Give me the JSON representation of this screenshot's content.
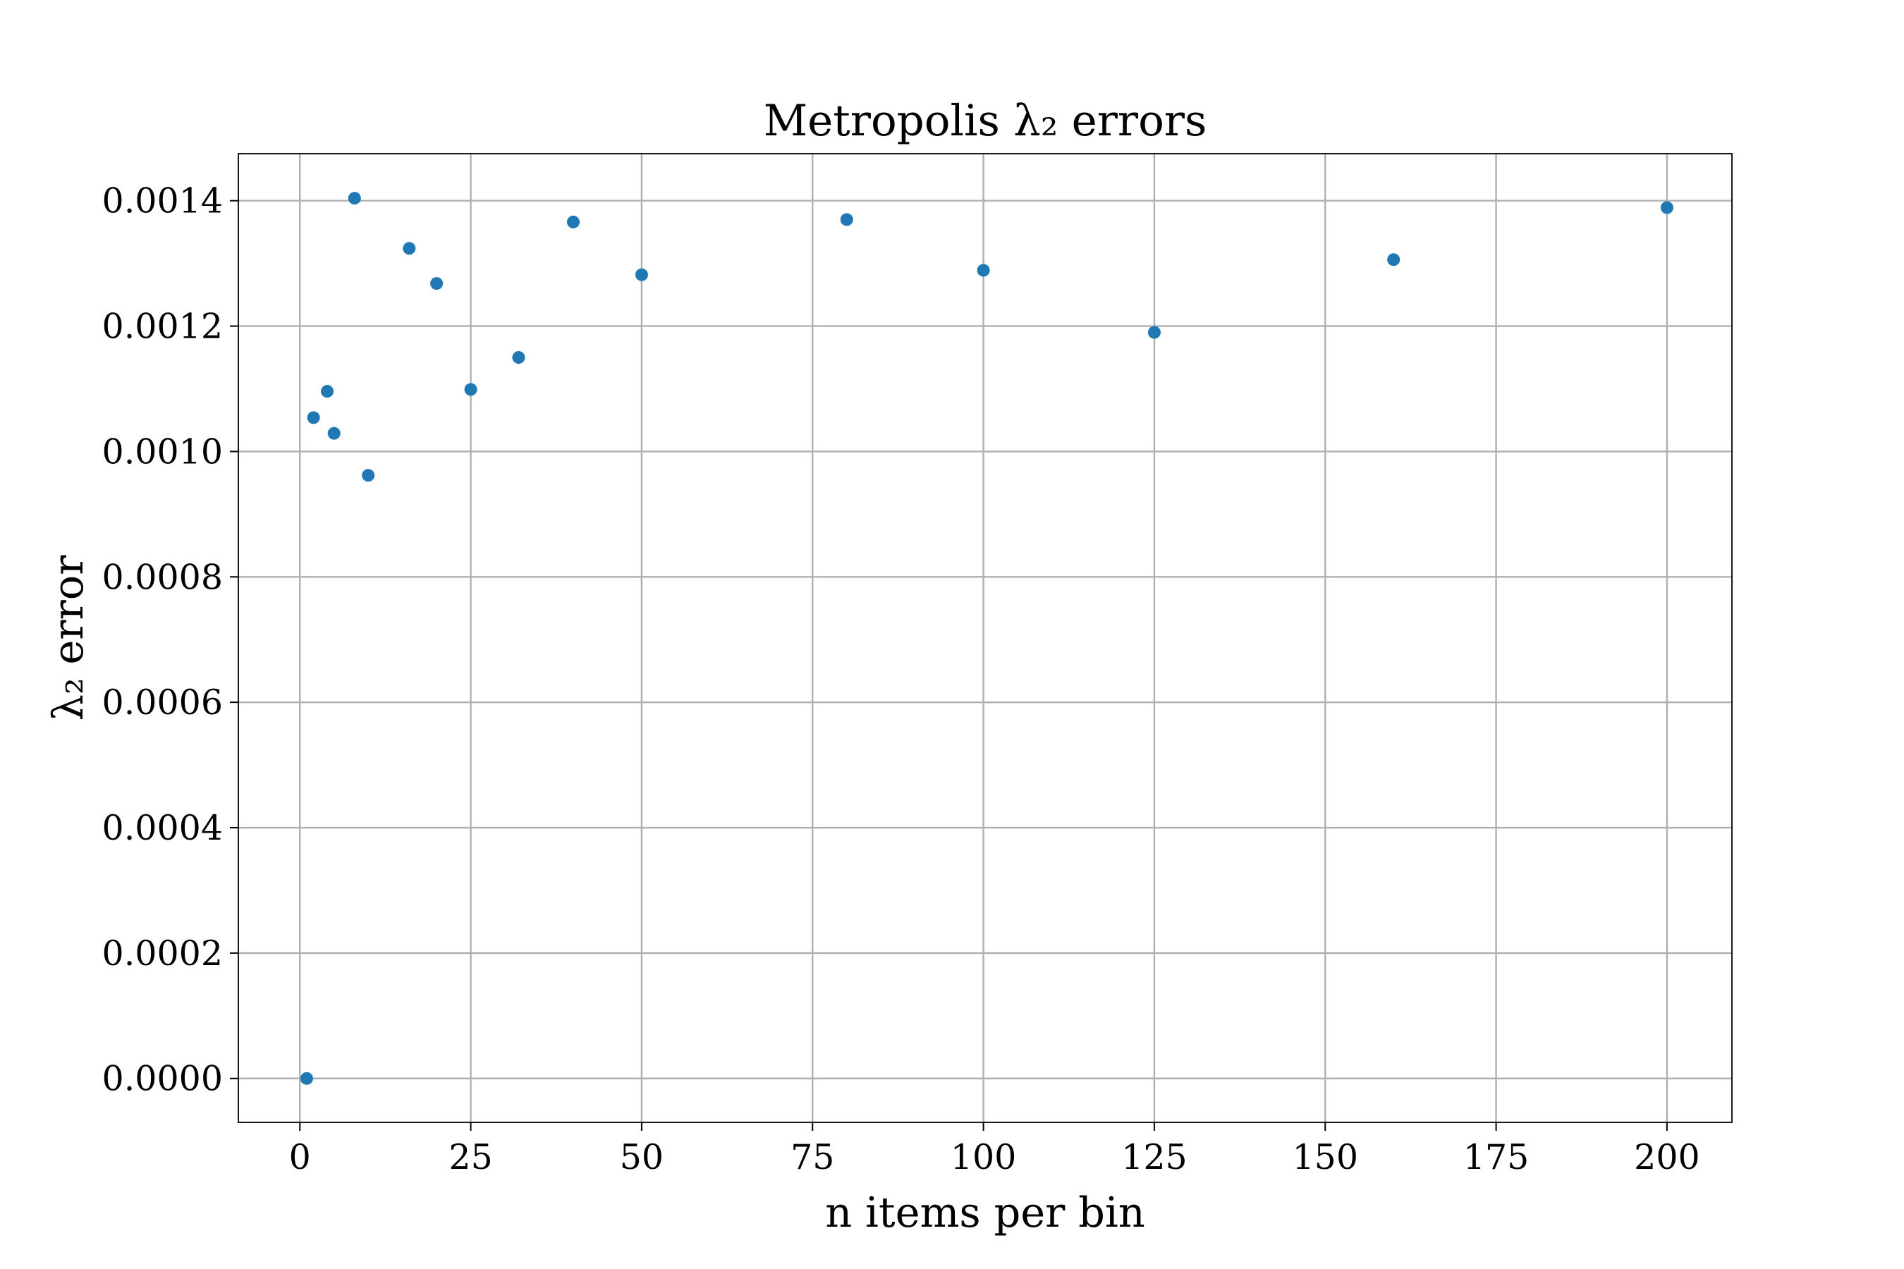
{
  "chart_data": {
    "type": "scatter",
    "title": "Metropolis λ₂ errors",
    "xlabel": "n items per bin",
    "ylabel": "λ₂ error",
    "xlim": [
      -9,
      209.5
    ],
    "ylim": [
      -7e-05,
      0.001475
    ],
    "xticks": [
      0,
      25,
      50,
      75,
      100,
      125,
      150,
      175,
      200
    ],
    "yticks": [
      0.0,
      0.0002,
      0.0004,
      0.0006,
      0.0008,
      0.001,
      0.0012,
      0.0014
    ],
    "xtick_labels": [
      "0",
      "25",
      "50",
      "75",
      "100",
      "125",
      "150",
      "175",
      "200"
    ],
    "ytick_labels": [
      "0.0000",
      "0.0002",
      "0.0004",
      "0.0006",
      "0.0008",
      "0.0010",
      "0.0012",
      "0.0014"
    ],
    "grid": true,
    "color": "#1f77b4",
    "points": [
      {
        "x": 1,
        "y": 0.0
      },
      {
        "x": 2,
        "y": 0.001054
      },
      {
        "x": 4,
        "y": 0.001096
      },
      {
        "x": 5,
        "y": 0.001029
      },
      {
        "x": 8,
        "y": 0.001404
      },
      {
        "x": 10,
        "y": 0.000962
      },
      {
        "x": 16,
        "y": 0.001324
      },
      {
        "x": 20,
        "y": 0.001268
      },
      {
        "x": 25,
        "y": 0.001099
      },
      {
        "x": 32,
        "y": 0.00115
      },
      {
        "x": 40,
        "y": 0.001366
      },
      {
        "x": 50,
        "y": 0.001282
      },
      {
        "x": 80,
        "y": 0.00137
      },
      {
        "x": 100,
        "y": 0.001289
      },
      {
        "x": 125,
        "y": 0.00119
      },
      {
        "x": 160,
        "y": 0.001306
      },
      {
        "x": 200,
        "y": 0.001389
      }
    ]
  }
}
